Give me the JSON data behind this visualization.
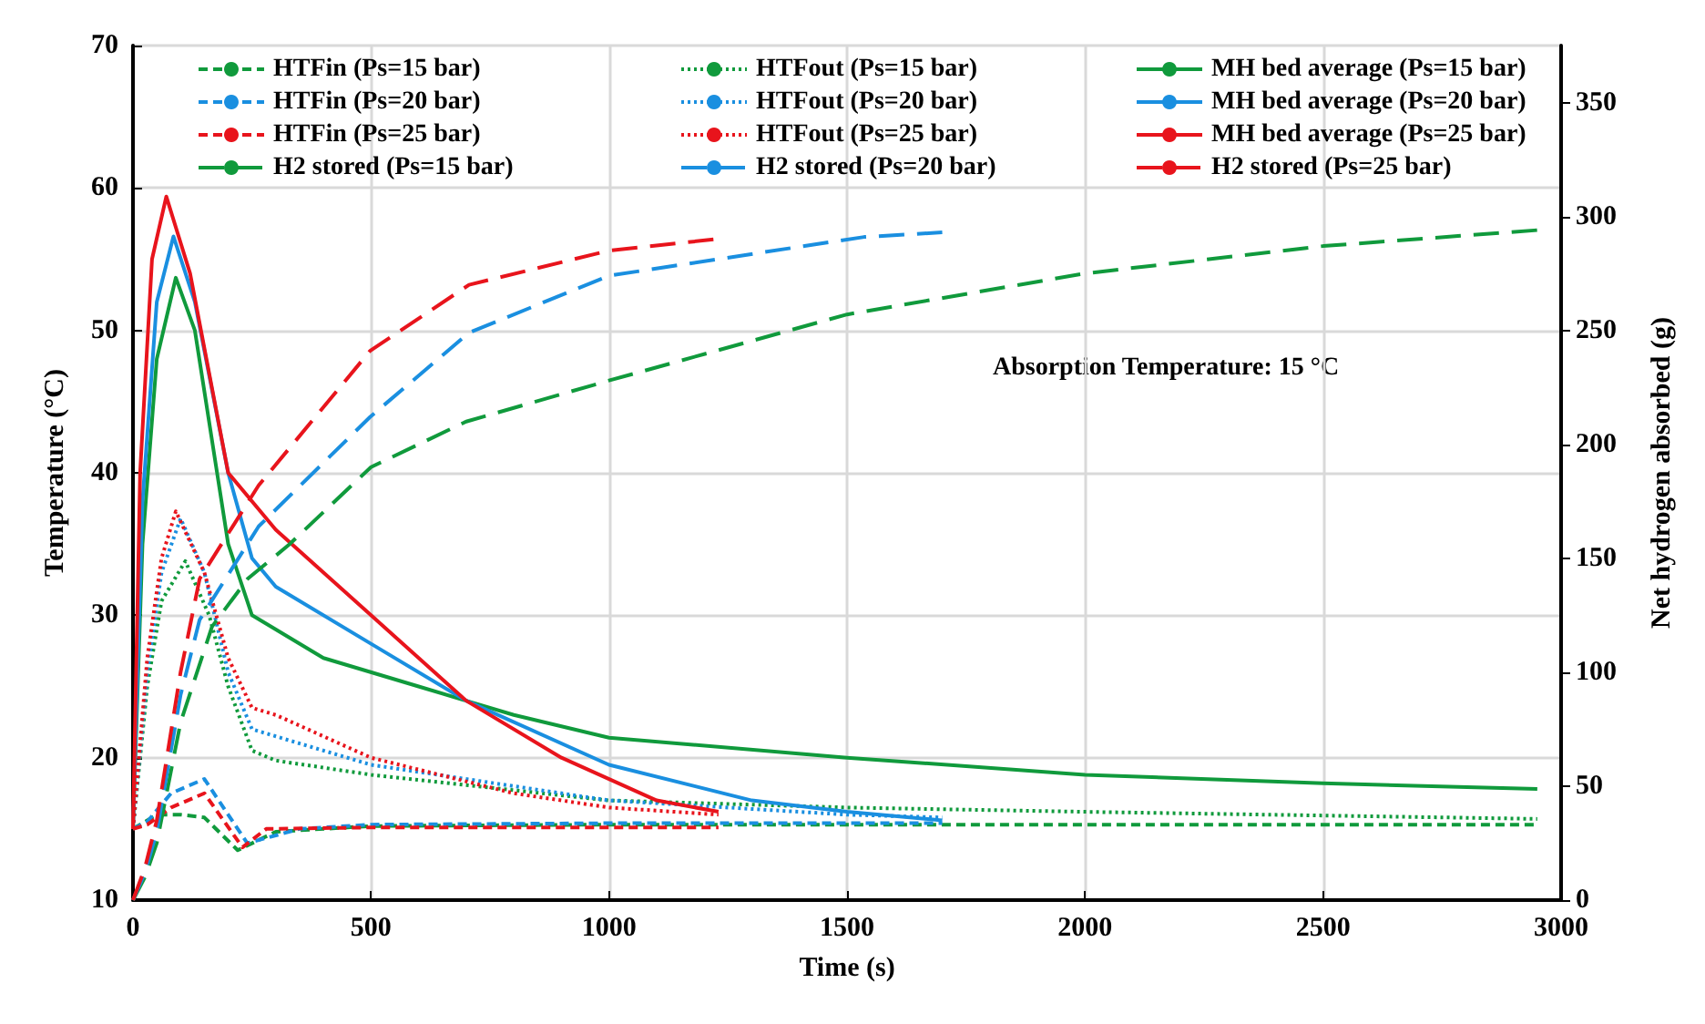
{
  "chart_data": {
    "type": "line",
    "xlabel": "Time (s)",
    "ylabel": "Temperature (°C)",
    "y2label": "Net hydrogen absorbed (g)",
    "annotations": [
      "Absorption Temperature: 15 °C"
    ],
    "xlim": [
      0,
      3000
    ],
    "xticks": [
      0,
      500,
      1000,
      1500,
      2000,
      2500,
      3000
    ],
    "ylim": [
      10,
      70
    ],
    "yticks": [
      10,
      20,
      30,
      40,
      50,
      60,
      70
    ],
    "y2lim": [
      0,
      375
    ],
    "y2ticks": [
      0,
      50,
      100,
      150,
      200,
      250,
      300,
      350
    ],
    "grid": true,
    "legend": "top",
    "marker": "none",
    "series": [
      {
        "name": "HTFin (Ps=15 bar)",
        "color": "#109a3c",
        "line_style": "dashed",
        "x": [
          0,
          50,
          100,
          150,
          220,
          300,
          500,
          1000,
          2000,
          2950
        ],
        "values": [
          15,
          16,
          16,
          15.8,
          13.5,
          14.8,
          15.2,
          15.3,
          15.3,
          15.3
        ]
      },
      {
        "name": "HTFout (Ps=15 bar)",
        "color": "#109a3c",
        "line_style": "dotted",
        "x": [
          0,
          30,
          60,
          110,
          160,
          200,
          250,
          300,
          500,
          1000,
          1500,
          2000,
          2950
        ],
        "values": [
          15,
          25,
          31,
          33.8,
          30,
          25,
          20.5,
          19.8,
          18.8,
          17,
          16.5,
          16.2,
          15.7
        ]
      },
      {
        "name": "MH bed average (Ps=15 bar)",
        "color": "#109a3c",
        "line_style": "solid",
        "x": [
          0,
          20,
          50,
          90,
          130,
          200,
          250,
          400,
          600,
          800,
          1000,
          1500,
          2000,
          2500,
          2950
        ],
        "values": [
          15,
          35,
          48,
          53.7,
          50,
          35,
          30,
          27,
          25,
          23,
          21.4,
          20,
          18.8,
          18.2,
          17.8
        ]
      },
      {
        "name": "HTFin (Ps=20 bar)",
        "color": "#1a8fe0",
        "line_style": "dashed",
        "x": [
          0,
          30,
          80,
          150,
          240,
          350,
          500,
          1000,
          1700
        ],
        "values": [
          15,
          15.5,
          17.5,
          18.5,
          14,
          15,
          15.3,
          15.4,
          15.4
        ]
      },
      {
        "name": "HTFout (Ps=20 bar)",
        "color": "#1a8fe0",
        "line_style": "dotted",
        "x": [
          0,
          30,
          60,
          100,
          150,
          200,
          250,
          300,
          500,
          1000,
          1500,
          1700
        ],
        "values": [
          15,
          26,
          33,
          36.8,
          33,
          26,
          22,
          21.5,
          19.5,
          17,
          16,
          15.8
        ]
      },
      {
        "name": "MH bed average (Ps=20 bar)",
        "color": "#1a8fe0",
        "line_style": "solid",
        "x": [
          0,
          20,
          50,
          85,
          130,
          200,
          250,
          300,
          500,
          700,
          1000,
          1300,
          1500,
          1700
        ],
        "values": [
          15,
          38,
          52,
          56.6,
          52,
          40,
          34,
          32,
          28,
          24,
          19.5,
          17,
          16.2,
          15.6
        ]
      },
      {
        "name": "HTFin (Ps=25 bar)",
        "color": "#e8141c",
        "line_style": "dashed",
        "x": [
          0,
          30,
          80,
          150,
          230,
          280,
          500,
          1000,
          1230
        ],
        "values": [
          15,
          15.3,
          16.5,
          17.5,
          13.7,
          15,
          15.1,
          15.1,
          15.1
        ]
      },
      {
        "name": "HTFout (Ps=25 bar)",
        "color": "#e8141c",
        "line_style": "dotted",
        "x": [
          0,
          30,
          60,
          90,
          150,
          200,
          250,
          300,
          500,
          800,
          1000,
          1230
        ],
        "values": [
          15,
          27,
          34,
          37.3,
          33,
          27,
          23.5,
          23,
          20,
          17.5,
          16.5,
          16
        ]
      },
      {
        "name": "MH bed average (Ps=25 bar)",
        "color": "#e8141c",
        "line_style": "solid",
        "x": [
          0,
          15,
          40,
          70,
          120,
          200,
          300,
          500,
          700,
          900,
          1000,
          1100,
          1230
        ],
        "values": [
          15,
          40,
          55,
          59.4,
          54,
          40,
          36,
          30,
          24,
          20,
          18.5,
          17,
          16.2
        ]
      },
      {
        "name": "H2 stored (Ps=15 bar)",
        "color": "#109a3c",
        "line_style": "dashed",
        "axis": "y2",
        "x": [
          0,
          25,
          50,
          100,
          166,
          241,
          328,
          500,
          700,
          1000,
          1500,
          2000,
          2500,
          2950
        ],
        "values": [
          0,
          10,
          25,
          78,
          120,
          141,
          156,
          190,
          210,
          228,
          257,
          275,
          287,
          294
        ]
      },
      {
        "name": "H2 stored (Ps=20 bar)",
        "color": "#1a8fe0",
        "line_style": "dashed",
        "axis": "y2",
        "x": [
          0,
          25,
          50,
          100,
          140,
          264,
          498,
          706,
          1000,
          1536,
          1700
        ],
        "values": [
          0,
          12,
          30,
          90,
          123,
          164,
          212,
          249,
          274,
          291,
          293
        ]
      },
      {
        "name": "H2 stored (Ps=25 bar)",
        "color": "#e8141c",
        "line_style": "dashed",
        "axis": "y2",
        "x": [
          0,
          25,
          50,
          100,
          140,
          264,
          498,
          706,
          1000,
          1223
        ],
        "values": [
          0,
          14,
          35,
          100,
          141,
          182,
          241,
          270,
          285,
          290
        ]
      }
    ]
  }
}
